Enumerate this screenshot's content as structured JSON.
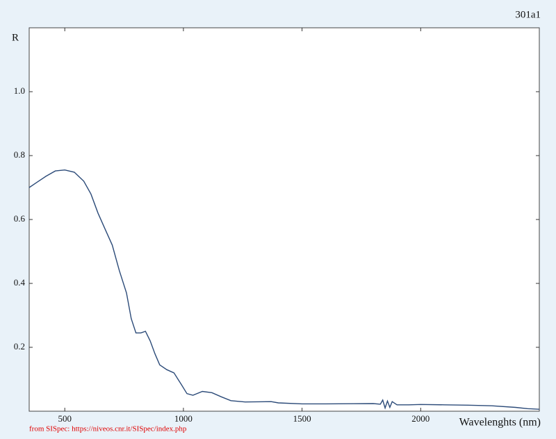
{
  "chart_data": {
    "type": "line",
    "title": "301a1",
    "y_label": "R",
    "x_label": "Wavelenghts (nm)",
    "source": "from SISpec: https://niveos.cnr.it/SISpec/index.php",
    "xlim": [
      350,
      2500
    ],
    "ylim": [
      0,
      1.2
    ],
    "xticks": [
      500,
      1000,
      1500,
      2000
    ],
    "yticks": [
      0.2,
      0.4,
      0.6,
      {
        "value": 1,
        "label": "1.0"
      },
      0.8
    ],
    "series": [
      {
        "name": "301a1",
        "color": "#2b4a78",
        "x": [
          350,
          380,
          420,
          460,
          500,
          540,
          580,
          610,
          640,
          670,
          700,
          730,
          760,
          780,
          800,
          820,
          840,
          860,
          880,
          900,
          930,
          960,
          990,
          1015,
          1040,
          1080,
          1120,
          1160,
          1200,
          1260,
          1370,
          1400,
          1500,
          1600,
          1800,
          1830,
          1840,
          1850,
          1860,
          1870,
          1880,
          1900,
          1950,
          2000,
          2100,
          2200,
          2300,
          2400,
          2450,
          2500
        ],
        "values": [
          0.7,
          0.715,
          0.735,
          0.752,
          0.755,
          0.748,
          0.72,
          0.68,
          0.62,
          0.57,
          0.52,
          0.44,
          0.37,
          0.29,
          0.245,
          0.245,
          0.25,
          0.22,
          0.18,
          0.145,
          0.13,
          0.12,
          0.085,
          0.055,
          0.05,
          0.062,
          0.058,
          0.045,
          0.033,
          0.029,
          0.03,
          0.026,
          0.023,
          0.023,
          0.024,
          0.022,
          0.035,
          0.01,
          0.032,
          0.012,
          0.03,
          0.02,
          0.02,
          0.021,
          0.02,
          0.019,
          0.017,
          0.012,
          0.008,
          0.006
        ]
      }
    ]
  }
}
